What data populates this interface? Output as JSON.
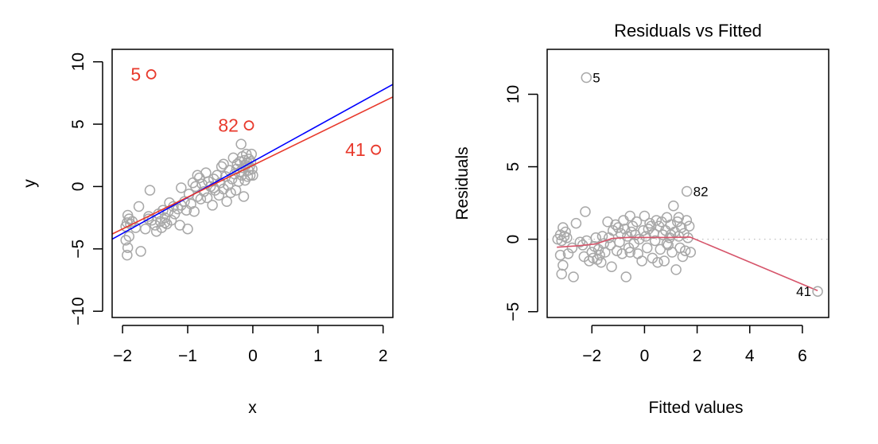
{
  "chart_data": [
    {
      "type": "scatter",
      "title": "",
      "xlabel": "x",
      "ylabel": "y",
      "xlim": [
        -2.16,
        2.15
      ],
      "ylim": [
        -10.5,
        11.0
      ],
      "xticks": [
        -2,
        -1,
        0,
        1,
        2
      ],
      "xtick_labels": [
        "−2",
        "−1",
        "0",
        "1",
        "2"
      ],
      "yticks": [
        -10,
        -5,
        0,
        5,
        10
      ],
      "ytick_labels": [
        "−10",
        "−5",
        "0",
        "5",
        "10"
      ],
      "grid": false,
      "points": [
        [
          -1.95,
          -3.2
        ],
        [
          -1.93,
          -2.9
        ],
        [
          -1.9,
          -2.6
        ],
        [
          -1.92,
          -2.3
        ],
        [
          -1.88,
          -3.0
        ],
        [
          -1.95,
          -4.3
        ],
        [
          -1.9,
          -4.0
        ],
        [
          -1.92,
          -4.9
        ],
        [
          -1.93,
          -5.5
        ],
        [
          -1.72,
          -5.2
        ],
        [
          -1.85,
          -2.8
        ],
        [
          -1.8,
          -3.3
        ],
        [
          -1.75,
          -1.6
        ],
        [
          -1.65,
          -3.4
        ],
        [
          -1.6,
          -2.4
        ],
        [
          -1.55,
          -2.7
        ],
        [
          -1.58,
          -0.3
        ],
        [
          -1.5,
          -3.1
        ],
        [
          -1.48,
          -3.6
        ],
        [
          -1.45,
          -2.2
        ],
        [
          -1.42,
          -2.8
        ],
        [
          -1.4,
          -3.3
        ],
        [
          -1.38,
          -1.9
        ],
        [
          -1.35,
          -2.5
        ],
        [
          -1.32,
          -3.0
        ],
        [
          -1.3,
          -2.0
        ],
        [
          -1.28,
          -1.3
        ],
        [
          -1.25,
          -2.7
        ],
        [
          -1.22,
          -1.6
        ],
        [
          -1.2,
          -2.2
        ],
        [
          -1.15,
          -1.8
        ],
        [
          -1.12,
          -3.1
        ],
        [
          -1.1,
          -0.1
        ],
        [
          -1.05,
          -1.2
        ],
        [
          -1.02,
          -1.9
        ],
        [
          -1.0,
          -3.4
        ],
        [
          -0.98,
          -0.6
        ],
        [
          -0.95,
          -1.4
        ],
        [
          -0.92,
          0.3
        ],
        [
          -0.9,
          -2.0
        ],
        [
          -0.88,
          0.0
        ],
        [
          -0.85,
          -0.8
        ],
        [
          -0.82,
          0.7
        ],
        [
          -0.8,
          -1.0
        ],
        [
          -0.78,
          0.2
        ],
        [
          -0.75,
          -0.4
        ],
        [
          -0.72,
          1.1
        ],
        [
          -0.7,
          -0.9
        ],
        [
          -0.68,
          0.4
        ],
        [
          -0.65,
          0.0
        ],
        [
          -0.62,
          -1.5
        ],
        [
          -0.6,
          0.6
        ],
        [
          -0.58,
          -0.3
        ],
        [
          -0.55,
          0.9
        ],
        [
          -0.52,
          -0.7
        ],
        [
          -0.5,
          0.3
        ],
        [
          -0.48,
          1.6
        ],
        [
          -0.45,
          -0.2
        ],
        [
          -0.42,
          0.8
        ],
        [
          -0.4,
          -1.2
        ],
        [
          -0.38,
          0.1
        ],
        [
          -0.36,
          1.3
        ],
        [
          -0.34,
          -0.5
        ],
        [
          -0.32,
          0.6
        ],
        [
          -0.3,
          2.3
        ],
        [
          -0.28,
          1.0
        ],
        [
          -0.26,
          -0.3
        ],
        [
          -0.24,
          1.8
        ],
        [
          -0.22,
          0.4
        ],
        [
          -0.2,
          2.0
        ],
        [
          -0.19,
          1.2
        ],
        [
          -0.18,
          3.4
        ],
        [
          -0.17,
          0.9
        ],
        [
          -0.16,
          2.4
        ],
        [
          -0.15,
          1.5
        ],
        [
          -0.14,
          -0.8
        ],
        [
          -0.13,
          2.1
        ],
        [
          -0.12,
          0.5
        ],
        [
          -0.11,
          1.7
        ],
        [
          -0.1,
          2.6
        ],
        [
          -0.09,
          1.9
        ],
        [
          -0.08,
          0.8
        ],
        [
          -0.07,
          1.3
        ],
        [
          -0.06,
          2.2
        ],
        [
          -0.05,
          1.6
        ],
        [
          -0.04,
          0.9
        ],
        [
          -0.03,
          2.0
        ],
        [
          -0.02,
          2.6
        ],
        [
          -0.01,
          1.4
        ],
        [
          0.0,
          0.9
        ],
        [
          -0.6,
          -0.1
        ],
        [
          -1.1,
          -1.5
        ],
        [
          -1.35,
          -2.9
        ],
        [
          -0.85,
          0.9
        ],
        [
          -0.45,
          1.8
        ],
        [
          -0.25,
          1.4
        ],
        [
          -1.6,
          -2.6
        ]
      ],
      "highlighted_points": [
        {
          "label": "5",
          "x": -1.56,
          "y": 9.0
        },
        {
          "label": "82",
          "x": -0.06,
          "y": 4.9
        },
        {
          "label": "41",
          "x": 1.89,
          "y": 2.95
        }
      ],
      "lines": [
        {
          "name": "fit-without-outliers",
          "color": "#0000ff",
          "intercept": 2.0,
          "slope": 2.88
        },
        {
          "name": "fit-all-points",
          "color": "#e8392c",
          "intercept": 1.7,
          "slope": 2.55
        }
      ],
      "point_color": "#a8a8a8",
      "highlight_color": "#e8392c"
    },
    {
      "type": "scatter",
      "title": "Residuals vs Fitted",
      "xlabel": "Fitted values",
      "ylabel": "Residuals",
      "xlim": [
        -3.7,
        7.0
      ],
      "ylim": [
        -5.4,
        13.1
      ],
      "xticks": [
        -2,
        0,
        2,
        4,
        6
      ],
      "xtick_labels": [
        "−2",
        "0",
        "2",
        "4",
        "6"
      ],
      "yticks": [
        -5,
        0,
        5,
        10
      ],
      "ytick_labels": [
        "−5",
        "0",
        "5",
        "10"
      ],
      "grid": false,
      "reference_line": {
        "y": 0,
        "style": "dotted",
        "color": "#c0c0c0"
      },
      "points": [
        [
          -3.3,
          0.0
        ],
        [
          -3.2,
          0.3
        ],
        [
          -3.15,
          -0.1
        ],
        [
          -3.1,
          0.8
        ],
        [
          -3.05,
          0.2
        ],
        [
          -3.2,
          -1.1
        ],
        [
          -3.1,
          -1.8
        ],
        [
          -3.15,
          -2.4
        ],
        [
          -2.95,
          0.1
        ],
        [
          -2.75,
          -0.6
        ],
        [
          -2.7,
          -2.6
        ],
        [
          -2.6,
          1.1
        ],
        [
          -2.45,
          -0.2
        ],
        [
          -2.35,
          -0.4
        ],
        [
          -2.3,
          -1.2
        ],
        [
          -2.25,
          1.9
        ],
        [
          -2.2,
          -0.1
        ],
        [
          -2.1,
          -1.5
        ],
        [
          -2.0,
          -0.9
        ],
        [
          -1.95,
          -1.3
        ],
        [
          -1.9,
          -0.5
        ],
        [
          -1.85,
          0.1
        ],
        [
          -1.8,
          -1.4
        ],
        [
          -1.75,
          -0.7
        ],
        [
          -1.7,
          -1.1
        ],
        [
          -1.6,
          0.2
        ],
        [
          -1.55,
          -0.3
        ],
        [
          -1.5,
          -0.9
        ],
        [
          -1.4,
          1.2
        ],
        [
          -1.3,
          -0.4
        ],
        [
          -1.25,
          -1.9
        ],
        [
          -1.2,
          0.6
        ],
        [
          -1.1,
          1.0
        ],
        [
          -1.05,
          -0.8
        ],
        [
          -1.0,
          0.8
        ],
        [
          -0.95,
          -0.2
        ],
        [
          -0.9,
          0.4
        ],
        [
          -0.85,
          -1.0
        ],
        [
          -0.8,
          1.3
        ],
        [
          -0.75,
          0.7
        ],
        [
          -0.7,
          -2.6
        ],
        [
          -0.65,
          0.2
        ],
        [
          -0.6,
          -0.6
        ],
        [
          -0.55,
          1.6
        ],
        [
          -0.5,
          0.5
        ],
        [
          -0.45,
          0.9
        ],
        [
          -0.4,
          -0.3
        ],
        [
          -0.35,
          0.3
        ],
        [
          -0.3,
          1.2
        ],
        [
          -0.2,
          0.0
        ],
        [
          -0.1,
          -1.5
        ],
        [
          -0.05,
          0.6
        ],
        [
          0.0,
          1.6
        ],
        [
          0.05,
          0.2
        ],
        [
          0.1,
          -0.6
        ],
        [
          0.15,
          0.7
        ],
        [
          0.2,
          1.1
        ],
        [
          0.3,
          -1.3
        ],
        [
          0.35,
          0.4
        ],
        [
          0.4,
          -0.1
        ],
        [
          0.5,
          -1.6
        ],
        [
          0.55,
          0.9
        ],
        [
          0.6,
          -0.7
        ],
        [
          0.65,
          1.2
        ],
        [
          0.7,
          0.3
        ],
        [
          0.75,
          -1.5
        ],
        [
          0.8,
          0.6
        ],
        [
          0.85,
          1.5
        ],
        [
          0.9,
          -0.4
        ],
        [
          0.95,
          0.1
        ],
        [
          1.0,
          1.0
        ],
        [
          1.05,
          -0.9
        ],
        [
          1.1,
          2.3
        ],
        [
          1.15,
          0.5
        ],
        [
          1.2,
          -2.1
        ],
        [
          1.25,
          1.2
        ],
        [
          1.3,
          0.2
        ],
        [
          1.35,
          -0.6
        ],
        [
          1.4,
          0.8
        ],
        [
          1.45,
          -1.2
        ],
        [
          1.5,
          0.4
        ],
        [
          1.55,
          -0.8
        ],
        [
          1.6,
          1.3
        ],
        [
          1.65,
          0.1
        ],
        [
          1.7,
          0.9
        ],
        [
          1.75,
          -0.9
        ],
        [
          0.25,
          0.9
        ],
        [
          -1.35,
          0.1
        ],
        [
          -2.9,
          -1.0
        ],
        [
          0.45,
          1.3
        ],
        [
          -0.25,
          -1.0
        ],
        [
          1.0,
          0.3
        ],
        [
          -1.65,
          -1.6
        ],
        [
          0.85,
          -0.3
        ],
        [
          -3.0,
          0.5
        ],
        [
          1.3,
          1.5
        ],
        [
          -0.55,
          -0.9
        ]
      ],
      "highlighted_points": [
        {
          "label": "5",
          "x": -2.21,
          "y": 11.15,
          "label_side": "right"
        },
        {
          "label": "82",
          "x": 1.61,
          "y": 3.3,
          "label_side": "right"
        },
        {
          "label": "41",
          "x": 6.58,
          "y": -3.6,
          "label_side": "left"
        }
      ],
      "smoother": {
        "color": "#d6546a",
        "points": [
          [
            -3.33,
            -0.55
          ],
          [
            -2.5,
            -0.45
          ],
          [
            -1.85,
            -0.33
          ],
          [
            -1.24,
            0.05
          ],
          [
            -0.64,
            0.12
          ],
          [
            0.27,
            0.12
          ],
          [
            1.0,
            0.12
          ],
          [
            1.73,
            0.15
          ],
          [
            6.58,
            -3.55
          ]
        ]
      },
      "point_color": "#a8a8a8",
      "label_color": "#000000"
    }
  ]
}
